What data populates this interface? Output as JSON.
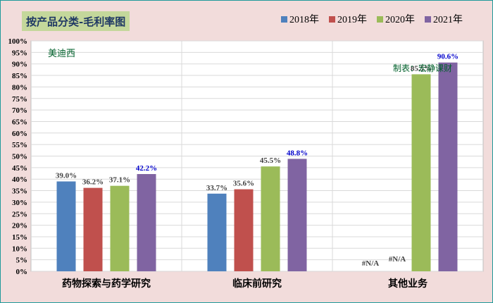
{
  "title": "按产品分类-毛利率图",
  "annotation_company": "美迪西",
  "annotation_watermark": "制表：宏静课财",
  "colors": {
    "background": "#f2dcdb",
    "title_bg": "#c4d79b",
    "title_text": "#1f3864",
    "annotation_text": "#00602b",
    "highlight_label": "#0000cc"
  },
  "chart_data": {
    "type": "bar",
    "title": "按产品分类-毛利率图",
    "categories": [
      "药物探索与药学研究",
      "临床前研究",
      "其他业务"
    ],
    "series": [
      {
        "name": "2018年",
        "color": "#4f81bd",
        "values": [
          39.0,
          33.7,
          null
        ],
        "labels": [
          "39.0%",
          "33.7%",
          "#N/A"
        ]
      },
      {
        "name": "2019年",
        "color": "#c0504d",
        "values": [
          36.2,
          35.6,
          null
        ],
        "labels": [
          "36.2%",
          "35.6%",
          "#N/A"
        ]
      },
      {
        "name": "2020年",
        "color": "#9bbb59",
        "values": [
          37.1,
          45.5,
          85.5
        ],
        "labels": [
          "37.1%",
          "45.5%",
          "85.5%"
        ]
      },
      {
        "name": "2021年",
        "color": "#8064a2",
        "values": [
          42.2,
          48.8,
          90.6
        ],
        "labels": [
          "42.2%",
          "48.8%",
          "90.6%"
        ]
      }
    ],
    "y_ticks": [
      "0%",
      "5%",
      "10%",
      "15%",
      "20%",
      "25%",
      "30%",
      "35%",
      "40%",
      "45%",
      "50%",
      "55%",
      "60%",
      "65%",
      "70%",
      "75%",
      "80%",
      "85%",
      "90%",
      "95%",
      "100%"
    ],
    "ylim": [
      0,
      100
    ],
    "grid": true,
    "legend_position": "top-right"
  }
}
